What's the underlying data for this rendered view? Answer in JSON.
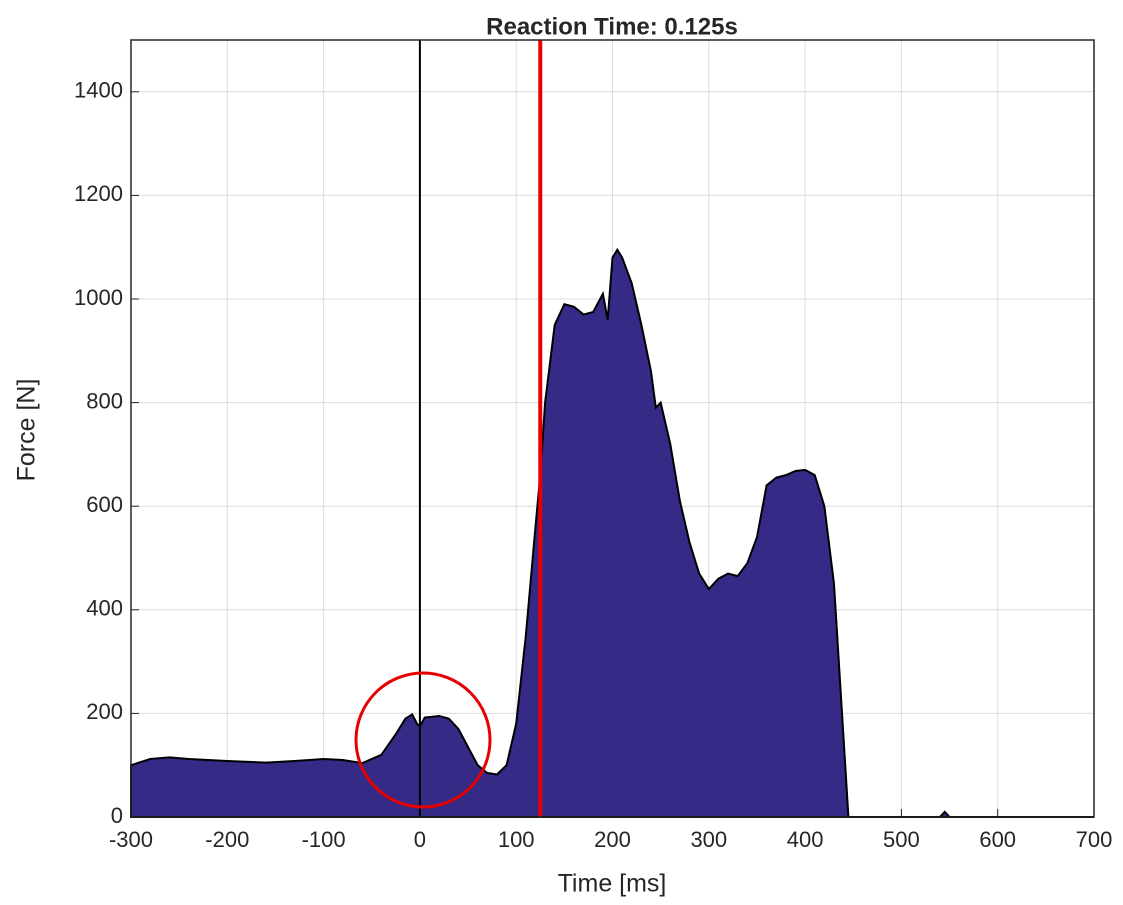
{
  "chart_data": {
    "type": "area",
    "title": "Reaction Time: 0.125s",
    "x_label": "Time [ms]",
    "y_label": "Force [N]",
    "x": [
      -300,
      -280,
      -260,
      -240,
      -200,
      -160,
      -130,
      -100,
      -80,
      -60,
      -40,
      -25,
      -15,
      -8,
      -3,
      0,
      5,
      20,
      30,
      40,
      50,
      60,
      70,
      80,
      90,
      100,
      110,
      120,
      125,
      130,
      140,
      150,
      160,
      170,
      180,
      190,
      195,
      200,
      205,
      210,
      220,
      230,
      240,
      245,
      250,
      260,
      270,
      280,
      290,
      300,
      310,
      320,
      330,
      340,
      350,
      360,
      370,
      380,
      390,
      400,
      410,
      420,
      430,
      440,
      445,
      540,
      545,
      550,
      700
    ],
    "series": [
      {
        "color": "#352a86",
        "values": [
          100,
          112,
          115,
          112,
          108,
          105,
          108,
          112,
          110,
          104,
          120,
          160,
          190,
          198,
          180,
          175,
          192,
          195,
          190,
          170,
          135,
          100,
          85,
          82,
          100,
          180,
          350,
          560,
          660,
          800,
          950,
          990,
          985,
          970,
          975,
          1010,
          960,
          1080,
          1095,
          1080,
          1030,
          950,
          860,
          790,
          800,
          720,
          610,
          530,
          470,
          440,
          460,
          470,
          465,
          490,
          540,
          640,
          655,
          660,
          668,
          670,
          660,
          600,
          450,
          150,
          0,
          0,
          10,
          0,
          0
        ]
      }
    ],
    "vlines": [
      {
        "x": 0,
        "color": "#000000"
      },
      {
        "x": 125,
        "color": "#e60000"
      }
    ],
    "xlim": [
      -300,
      700
    ],
    "ylim": [
      0,
      1500
    ],
    "xticks": [
      -300,
      -200,
      -100,
      0,
      100,
      200,
      300,
      400,
      500,
      600,
      700
    ],
    "yticks": [
      0,
      200,
      400,
      600,
      800,
      1000,
      1200,
      1400
    ],
    "grid": true
  }
}
